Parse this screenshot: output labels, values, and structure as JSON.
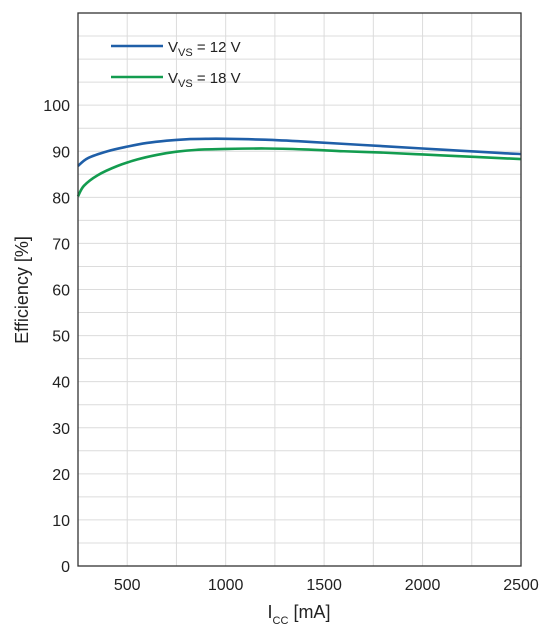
{
  "chart_data": {
    "type": "line",
    "xlabel": {
      "main": "I",
      "sub": "CC",
      "rest": " [mA]"
    },
    "ylabel": "Efficiency [%]",
    "xlim": [
      250,
      2500
    ],
    "ylim": [
      0,
      120
    ],
    "xticks": [
      500,
      1000,
      1500,
      2000,
      2500
    ],
    "yticks": [
      0,
      10,
      20,
      30,
      40,
      50,
      60,
      70,
      80,
      90,
      100
    ],
    "x_minor_step": 250,
    "y_minor_step": 5,
    "grid": true,
    "legend_position": "top-left",
    "series": [
      {
        "name": {
          "main": "V",
          "sub": "VS",
          "rest": " = 12 V"
        },
        "color": "#1f5fa8",
        "x": [
          250,
          300,
          400,
          500,
          600,
          700,
          800,
          900,
          1000,
          1200,
          1400,
          1600,
          1800,
          2000,
          2200,
          2400,
          2500
        ],
        "y": [
          86.8,
          88.5,
          90.0,
          91.0,
          91.8,
          92.3,
          92.6,
          92.7,
          92.7,
          92.5,
          92.1,
          91.6,
          91.1,
          90.6,
          90.1,
          89.6,
          89.4
        ]
      },
      {
        "name": {
          "main": "V",
          "sub": "VS",
          "rest": " = 18 V"
        },
        "color": "#139c4f",
        "x": [
          250,
          280,
          350,
          450,
          550,
          650,
          750,
          850,
          1000,
          1200,
          1400,
          1600,
          1800,
          2000,
          2200,
          2400,
          2500
        ],
        "y": [
          80.2,
          82.5,
          84.8,
          86.8,
          88.2,
          89.2,
          89.9,
          90.3,
          90.5,
          90.6,
          90.4,
          90.0,
          89.7,
          89.3,
          88.9,
          88.5,
          88.3
        ]
      }
    ]
  }
}
